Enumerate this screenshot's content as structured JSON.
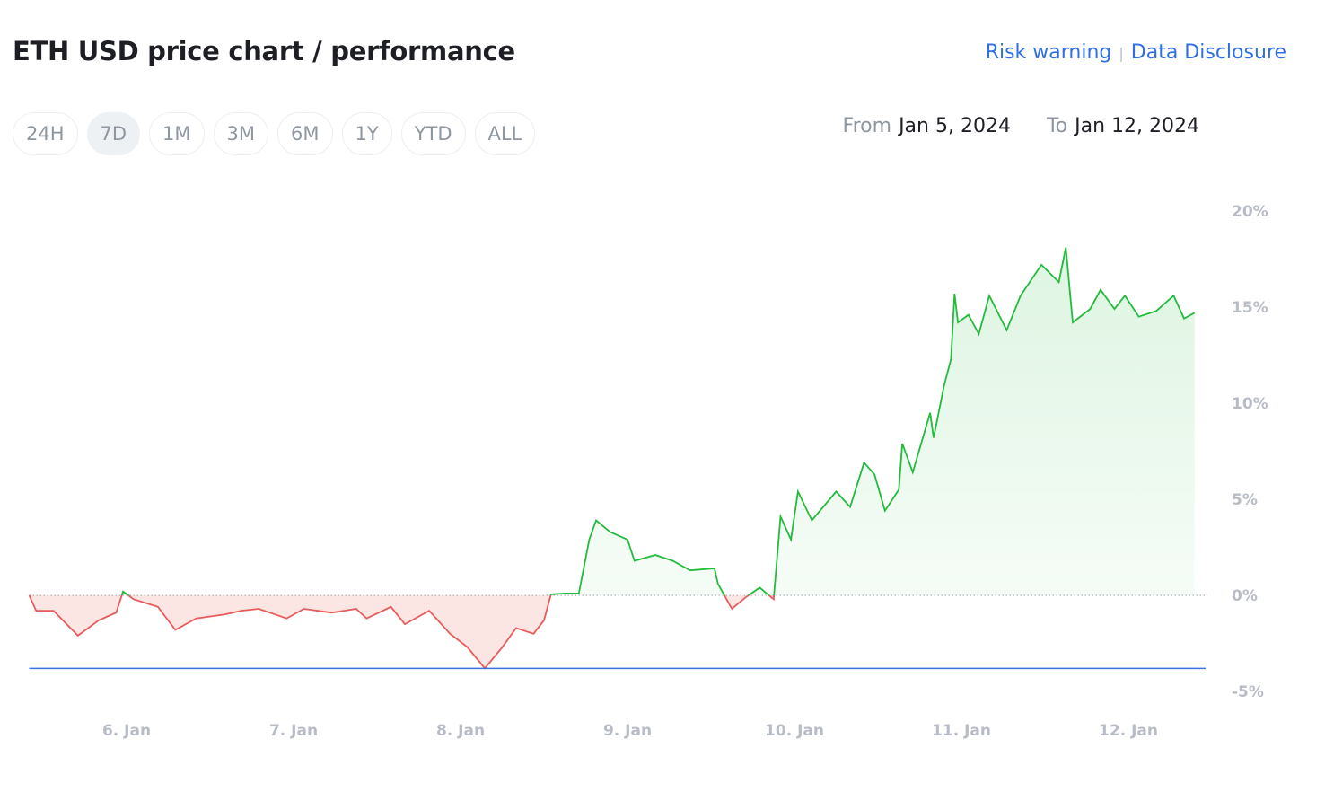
{
  "header": {
    "title": "ETH USD price chart / performance",
    "links": [
      "Risk warning",
      "Data Disclosure"
    ]
  },
  "ranges": {
    "items": [
      "24H",
      "7D",
      "1M",
      "3M",
      "6M",
      "1Y",
      "YTD",
      "ALL"
    ],
    "active": "7D"
  },
  "date_range": {
    "from_label": "From",
    "from": "Jan 5, 2024",
    "to_label": "To",
    "to": "Jan 12, 2024"
  },
  "colors": {
    "up": "#22bb3c",
    "down": "#e85b5b",
    "min_line": "#3b6fe0",
    "link": "#2f6fe4"
  },
  "chart_data": {
    "type": "area",
    "ylabel": "",
    "xlabel": "",
    "ylim": [
      -5,
      20
    ],
    "yticks": [
      {
        "v": 20,
        "label": "20%"
      },
      {
        "v": 15,
        "label": "15%"
      },
      {
        "v": 10,
        "label": "10%"
      },
      {
        "v": 5,
        "label": "5%"
      },
      {
        "v": 0,
        "label": "0%"
      },
      {
        "v": -5,
        "label": "-5%"
      }
    ],
    "xticks": [
      {
        "t": "2024-01-06 00:00",
        "label": "6. Jan"
      },
      {
        "t": "2024-01-07 00:00",
        "label": "7. Jan"
      },
      {
        "t": "2024-01-08 00:00",
        "label": "8. Jan"
      },
      {
        "t": "2024-01-09 00:00",
        "label": "9. Jan"
      },
      {
        "t": "2024-01-10 00:00",
        "label": "10. Jan"
      },
      {
        "t": "2024-01-11 00:00",
        "label": "11. Jan"
      },
      {
        "t": "2024-01-12 00:00",
        "label": "12. Jan"
      }
    ],
    "baseline": 0,
    "min_line": -3.8,
    "grid": false,
    "series": [
      {
        "points": [
          [
            "2024-01-05 10:00",
            0
          ],
          [
            "2024-01-05 11:00",
            -0.8
          ],
          [
            "2024-01-05 13:30",
            -0.8
          ],
          [
            "2024-01-05 17:00",
            -2.1
          ],
          [
            "2024-01-05 20:00",
            -1.3
          ],
          [
            "2024-01-05 22:30",
            -0.9
          ],
          [
            "2024-01-05 23:30",
            0.2
          ],
          [
            "2024-01-06 01:00",
            -0.2
          ],
          [
            "2024-01-06 04:30",
            -0.6
          ],
          [
            "2024-01-06 07:00",
            -1.8
          ],
          [
            "2024-01-06 10:00",
            -1.2
          ],
          [
            "2024-01-06 14:00",
            -1.0
          ],
          [
            "2024-01-06 16:30",
            -0.8
          ],
          [
            "2024-01-06 19:00",
            -0.7
          ],
          [
            "2024-01-06 23:00",
            -1.2
          ],
          [
            "2024-01-07 01:30",
            -0.7
          ],
          [
            "2024-01-07 05:30",
            -0.9
          ],
          [
            "2024-01-07 09:00",
            -0.7
          ],
          [
            "2024-01-07 10:30",
            -1.2
          ],
          [
            "2024-01-07 14:00",
            -0.6
          ],
          [
            "2024-01-07 16:00",
            -1.5
          ],
          [
            "2024-01-07 19:30",
            -0.8
          ],
          [
            "2024-01-07 22:30",
            -2.0
          ],
          [
            "2024-01-08 01:00",
            -2.7
          ],
          [
            "2024-01-08 03:30",
            -3.8
          ],
          [
            "2024-01-08 06:00",
            -2.7
          ],
          [
            "2024-01-08 08:00",
            -1.7
          ],
          [
            "2024-01-08 10:30",
            -2.0
          ],
          [
            "2024-01-08 12:00",
            -1.3
          ],
          [
            "2024-01-08 13:00",
            0.05
          ],
          [
            "2024-01-08 15:00",
            0.1
          ],
          [
            "2024-01-08 17:00",
            0.1
          ],
          [
            "2024-01-08 18:30",
            2.9
          ],
          [
            "2024-01-08 19:30",
            3.9
          ],
          [
            "2024-01-08 21:30",
            3.3
          ],
          [
            "2024-01-09 00:00",
            2.9
          ],
          [
            "2024-01-09 01:00",
            1.8
          ],
          [
            "2024-01-09 04:00",
            2.1
          ],
          [
            "2024-01-09 06:30",
            1.8
          ],
          [
            "2024-01-09 09:00",
            1.3
          ],
          [
            "2024-01-09 12:30",
            1.4
          ],
          [
            "2024-01-09 13:00",
            0.6
          ],
          [
            "2024-01-09 15:00",
            -0.7
          ],
          [
            "2024-01-09 17:00",
            -0.1
          ],
          [
            "2024-01-09 19:00",
            0.4
          ],
          [
            "2024-01-09 21:00",
            -0.2
          ],
          [
            "2024-01-09 22:00",
            4.1
          ],
          [
            "2024-01-09 23:30",
            2.9
          ],
          [
            "2024-01-10 00:30",
            5.4
          ],
          [
            "2024-01-10 02:30",
            3.9
          ],
          [
            "2024-01-10 06:00",
            5.4
          ],
          [
            "2024-01-10 08:00",
            4.6
          ],
          [
            "2024-01-10 10:00",
            6.9
          ],
          [
            "2024-01-10 11:30",
            6.3
          ],
          [
            "2024-01-10 13:00",
            4.4
          ],
          [
            "2024-01-10 15:00",
            5.5
          ],
          [
            "2024-01-10 15:30",
            7.9
          ],
          [
            "2024-01-10 17:00",
            6.4
          ],
          [
            "2024-01-10 19:30",
            9.5
          ],
          [
            "2024-01-10 20:00",
            8.2
          ],
          [
            "2024-01-10 21:30",
            10.9
          ],
          [
            "2024-01-10 22:30",
            12.3
          ],
          [
            "2024-01-10 23:00",
            15.7
          ],
          [
            "2024-01-10 23:30",
            14.2
          ],
          [
            "2024-01-11 01:00",
            14.6
          ],
          [
            "2024-01-11 02:30",
            13.6
          ],
          [
            "2024-01-11 04:00",
            15.6
          ],
          [
            "2024-01-11 06:30",
            13.8
          ],
          [
            "2024-01-11 08:30",
            15.6
          ],
          [
            "2024-01-11 11:30",
            17.2
          ],
          [
            "2024-01-11 14:00",
            16.3
          ],
          [
            "2024-01-11 15:00",
            18.1
          ],
          [
            "2024-01-11 16:00",
            14.2
          ],
          [
            "2024-01-11 18:30",
            14.9
          ],
          [
            "2024-01-11 20:00",
            15.9
          ],
          [
            "2024-01-11 22:00",
            14.9
          ],
          [
            "2024-01-11 23:30",
            15.6
          ],
          [
            "2024-01-12 01:30",
            14.5
          ],
          [
            "2024-01-12 04:00",
            14.8
          ],
          [
            "2024-01-12 06:30",
            15.6
          ],
          [
            "2024-01-12 08:00",
            14.4
          ],
          [
            "2024-01-12 09:30",
            14.7
          ]
        ]
      }
    ]
  }
}
